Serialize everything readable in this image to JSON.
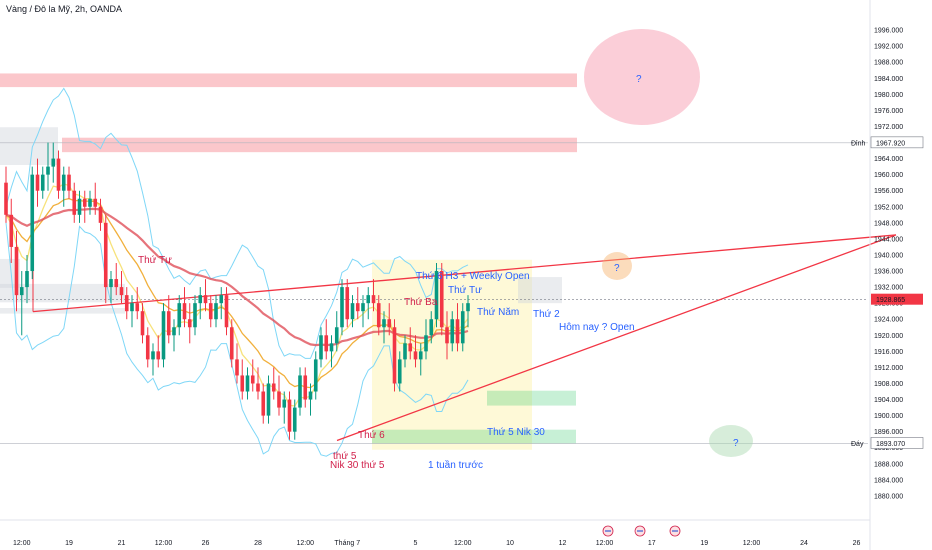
{
  "header": {
    "title": "Vàng / Đô la Mỹ, 2h, OANDA"
  },
  "colors": {
    "up": "#089981",
    "down": "#f23645",
    "bollinger": "#7fd7f7",
    "ema_slow": "#e0505a",
    "ema_mid": "#f1b03c",
    "ema_fast": "#f7e27a",
    "resistance": "#f23645",
    "support": "#21c45a",
    "neutral_zone": "#d1d4dc",
    "crosshair": "#787b86",
    "annotation_red": "#d11f4a",
    "annotation_blue": "#2962ff",
    "question_red": "#f7a6b8",
    "question_orange": "#f6b26b",
    "question_green": "#a7d8ae"
  },
  "chart_data": {
    "type": "candlestick",
    "symbol": "XAU/USD",
    "timeframe": "2h",
    "ylim": [
      1876,
      2000
    ],
    "y_ticks": [
      1880,
      1884,
      1888,
      1892,
      1896,
      1900,
      1904,
      1908,
      1912,
      1916,
      1920,
      1924,
      1928,
      1932,
      1936,
      1940,
      1944,
      1948,
      1952,
      1956,
      1960,
      1964,
      1968,
      1972,
      1976,
      1980,
      1984,
      1988,
      1992,
      1996
    ],
    "y_tick_labels": [
      "1880.000",
      "1884.000",
      "1888.000",
      "1892.000",
      "1896.000",
      "1900.000",
      "1904.000",
      "1908.000",
      "1912.000",
      "1916.000",
      "1920.000",
      "1924.000",
      "1928.000",
      "1932.000",
      "1936.000",
      "1940.000",
      "1944.000",
      "1948.000",
      "1952.000",
      "1956.000",
      "1960.000",
      "1964.000",
      "1968.000",
      "1972.000",
      "1976.000",
      "1980.000",
      "1984.000",
      "1988.000",
      "1992.000",
      "1996.000"
    ],
    "x_ticks": [
      {
        "bar": 3,
        "label": "12:00"
      },
      {
        "bar": 12,
        "label": "19"
      },
      {
        "bar": 22,
        "label": "21"
      },
      {
        "bar": 30,
        "label": "12:00"
      },
      {
        "bar": 38,
        "label": "26"
      },
      {
        "bar": 48,
        "label": "28"
      },
      {
        "bar": 57,
        "label": "12:00"
      },
      {
        "bar": 65,
        "label": "Tháng 7"
      },
      {
        "bar": 78,
        "label": "5"
      },
      {
        "bar": 87,
        "label": "12:00"
      },
      {
        "bar": 96,
        "label": "10"
      },
      {
        "bar": 106,
        "label": "12"
      },
      {
        "bar": 114,
        "label": "12:00"
      },
      {
        "bar": 123,
        "label": "17"
      },
      {
        "bar": 133,
        "label": "19"
      },
      {
        "bar": 142,
        "label": "12:00"
      },
      {
        "bar": 152,
        "label": "24"
      },
      {
        "bar": 162,
        "label": "26"
      }
    ],
    "candles": [
      [
        1958,
        1962,
        1948,
        1950
      ],
      [
        1950,
        1954,
        1938,
        1942
      ],
      [
        1942,
        1946,
        1926,
        1930
      ],
      [
        1930,
        1936,
        1920,
        1932
      ],
      [
        1932,
        1940,
        1928,
        1936
      ],
      [
        1936,
        1962,
        1934,
        1960
      ],
      [
        1960,
        1964,
        1952,
        1956
      ],
      [
        1956,
        1962,
        1954,
        1960
      ],
      [
        1960,
        1968,
        1956,
        1962
      ],
      [
        1962,
        1968,
        1958,
        1964
      ],
      [
        1964,
        1966,
        1954,
        1956
      ],
      [
        1956,
        1962,
        1952,
        1960
      ],
      [
        1960,
        1962,
        1954,
        1956
      ],
      [
        1956,
        1958,
        1948,
        1950
      ],
      [
        1950,
        1956,
        1948,
        1954
      ],
      [
        1954,
        1956,
        1948,
        1952
      ],
      [
        1952,
        1956,
        1950,
        1954
      ],
      [
        1954,
        1958,
        1950,
        1952
      ],
      [
        1952,
        1954,
        1946,
        1948
      ],
      [
        1948,
        1950,
        1928,
        1932
      ],
      [
        1932,
        1936,
        1928,
        1934
      ],
      [
        1934,
        1938,
        1930,
        1932
      ],
      [
        1932,
        1936,
        1928,
        1930
      ],
      [
        1930,
        1932,
        1924,
        1926
      ],
      [
        1926,
        1930,
        1922,
        1928
      ],
      [
        1928,
        1932,
        1924,
        1926
      ],
      [
        1926,
        1928,
        1918,
        1920
      ],
      [
        1920,
        1922,
        1912,
        1914
      ],
      [
        1914,
        1918,
        1910,
        1916
      ],
      [
        1916,
        1920,
        1912,
        1914
      ],
      [
        1914,
        1928,
        1912,
        1926
      ],
      [
        1926,
        1930,
        1918,
        1920
      ],
      [
        1920,
        1924,
        1916,
        1922
      ],
      [
        1922,
        1930,
        1920,
        1928
      ],
      [
        1928,
        1932,
        1922,
        1924
      ],
      [
        1924,
        1928,
        1918,
        1922
      ],
      [
        1922,
        1930,
        1920,
        1928
      ],
      [
        1928,
        1932,
        1924,
        1930
      ],
      [
        1930,
        1934,
        1926,
        1928
      ],
      [
        1928,
        1930,
        1922,
        1924
      ],
      [
        1924,
        1930,
        1922,
        1928
      ],
      [
        1928,
        1932,
        1924,
        1930
      ],
      [
        1930,
        1932,
        1920,
        1922
      ],
      [
        1922,
        1924,
        1912,
        1914
      ],
      [
        1914,
        1918,
        1908,
        1910
      ],
      [
        1910,
        1914,
        1904,
        1906
      ],
      [
        1906,
        1912,
        1904,
        1910
      ],
      [
        1910,
        1914,
        1906,
        1908
      ],
      [
        1908,
        1912,
        1904,
        1906
      ],
      [
        1906,
        1908,
        1898,
        1900
      ],
      [
        1900,
        1910,
        1898,
        1908
      ],
      [
        1908,
        1912,
        1904,
        1906
      ],
      [
        1906,
        1910,
        1900,
        1902
      ],
      [
        1902,
        1906,
        1898,
        1904
      ],
      [
        1904,
        1906,
        1894,
        1896
      ],
      [
        1896,
        1904,
        1894,
        1902
      ],
      [
        1902,
        1912,
        1900,
        1910
      ],
      [
        1910,
        1912,
        1902,
        1904
      ],
      [
        1904,
        1908,
        1900,
        1906
      ],
      [
        1906,
        1916,
        1904,
        1914
      ],
      [
        1914,
        1922,
        1912,
        1920
      ],
      [
        1920,
        1924,
        1914,
        1916
      ],
      [
        1916,
        1920,
        1912,
        1918
      ],
      [
        1918,
        1926,
        1916,
        1922
      ],
      [
        1922,
        1934,
        1920,
        1932
      ],
      [
        1932,
        1934,
        1922,
        1924
      ],
      [
        1924,
        1930,
        1922,
        1928
      ],
      [
        1928,
        1932,
        1924,
        1926
      ],
      [
        1926,
        1930,
        1922,
        1928
      ],
      [
        1928,
        1932,
        1924,
        1930
      ],
      [
        1930,
        1934,
        1926,
        1928
      ],
      [
        1928,
        1930,
        1920,
        1922
      ],
      [
        1922,
        1926,
        1918,
        1924
      ],
      [
        1924,
        1928,
        1920,
        1922
      ],
      [
        1922,
        1924,
        1906,
        1908
      ],
      [
        1908,
        1916,
        1906,
        1914
      ],
      [
        1914,
        1920,
        1912,
        1918
      ],
      [
        1918,
        1922,
        1914,
        1916
      ],
      [
        1916,
        1920,
        1912,
        1914
      ],
      [
        1914,
        1918,
        1910,
        1916
      ],
      [
        1916,
        1924,
        1914,
        1920
      ],
      [
        1920,
        1926,
        1918,
        1924
      ],
      [
        1924,
        1938,
        1922,
        1936
      ],
      [
        1936,
        1938,
        1920,
        1922
      ],
      [
        1922,
        1926,
        1914,
        1918
      ],
      [
        1918,
        1926,
        1916,
        1924
      ],
      [
        1924,
        1928,
        1916,
        1918
      ],
      [
        1918,
        1928,
        1916,
        1926
      ],
      [
        1926,
        1930,
        1922,
        1928
      ]
    ],
    "levels": {
      "top": 1967.92,
      "bottom": 1893.07,
      "last": 1928.865
    },
    "level_labels": {
      "top_tag": "Đỉnh",
      "top_value": "1967.920",
      "bottom_tag": "Đáy",
      "bottom_value": "1893.070",
      "last_value": "1928.865"
    },
    "annotations": {
      "thu_tu_left": "Thứ Tư",
      "thu_6_h3": "Thứ 6 H3 + Weekly Open",
      "thu_tu_right": "Thứ Tư",
      "thu_ba": "Thứ Ba",
      "thu_nam": "Thứ Năm",
      "thu_2": "Thứ 2",
      "hom_nay": "Hôm nay ? Open",
      "thu_5_nik": "Thứ 5 Nik 30",
      "thu_6": "Thứ 6",
      "thu_5": "thứ 5",
      "nik_30": "Nik 30 thứ 5",
      "tuan_truoc": "1 tuần trước",
      "q1": "?",
      "q2": "?",
      "q3": "?"
    }
  }
}
